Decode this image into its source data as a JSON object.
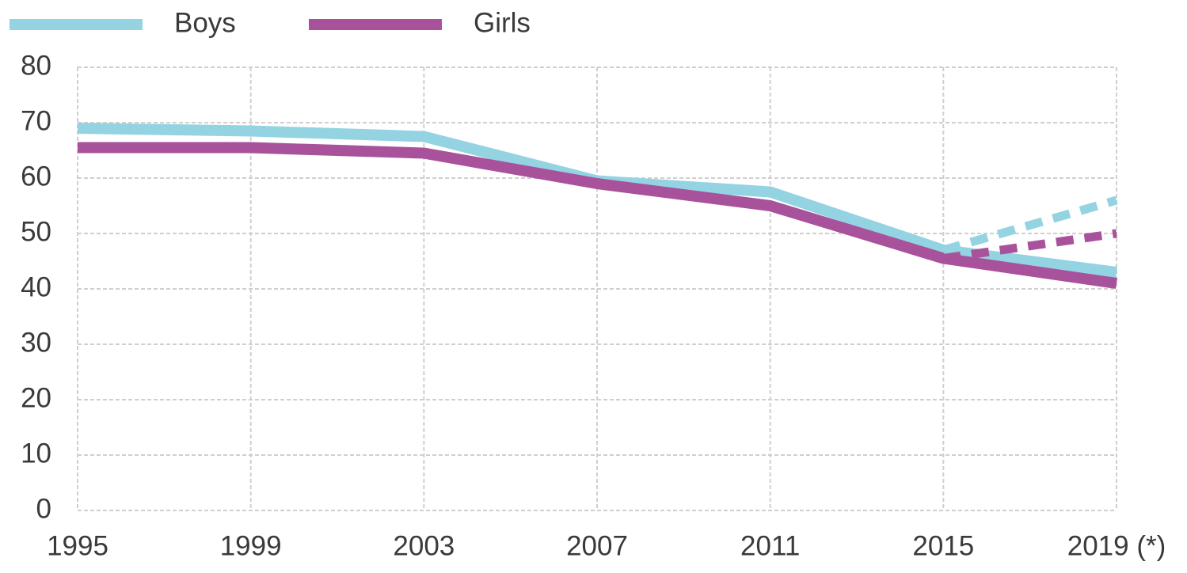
{
  "chart_data": {
    "type": "line",
    "categories": [
      "1995",
      "1999",
      "2003",
      "2007",
      "2011",
      "2015",
      "2019 (*)"
    ],
    "series": [
      {
        "name": "Boys",
        "color": "#94d3e2",
        "values": [
          69,
          68.5,
          67.5,
          59.5,
          57.5,
          47,
          43
        ]
      },
      {
        "name": "Girls",
        "color": "#a8529c",
        "values": [
          65.5,
          65.5,
          64.5,
          59,
          55,
          45.5,
          41
        ]
      },
      {
        "color": "#94d3e2",
        "dashed": true,
        "values": [
          null,
          null,
          null,
          null,
          null,
          47,
          56
        ]
      },
      {
        "color": "#a8529c",
        "dashed": true,
        "values": [
          null,
          null,
          null,
          null,
          null,
          45.5,
          50
        ]
      }
    ],
    "ylim": [
      0,
      80
    ],
    "yticks": [
      0,
      10,
      20,
      30,
      40,
      50,
      60,
      70,
      80
    ],
    "grid": true,
    "legend": "top-left"
  }
}
